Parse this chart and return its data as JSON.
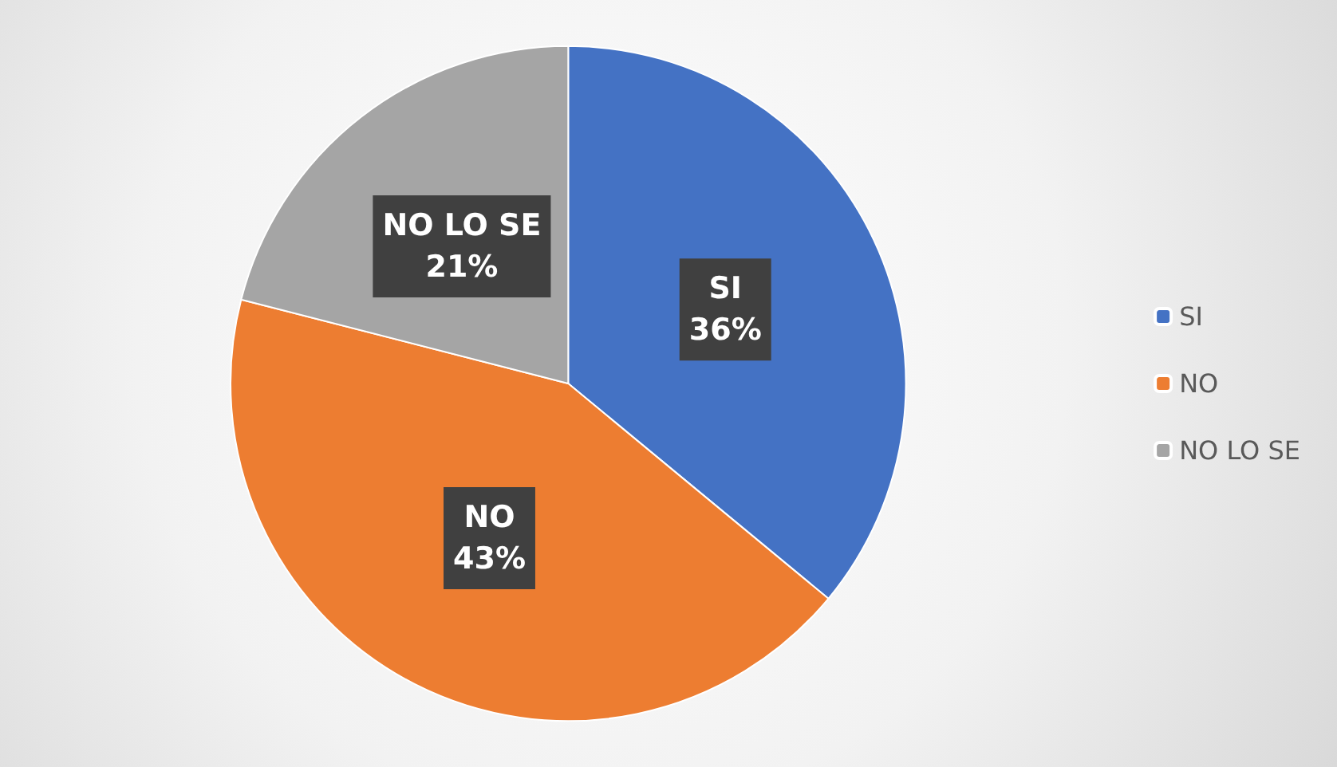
{
  "chart_data": {
    "type": "pie",
    "categories": [
      "SI",
      "NO",
      "NO LO SE"
    ],
    "values": [
      36,
      43,
      21
    ],
    "colors": [
      "#4472c4",
      "#ed7d31",
      "#a5a5a5"
    ],
    "value_labels": [
      "36%",
      "43%",
      "21%"
    ],
    "legend": "right"
  }
}
